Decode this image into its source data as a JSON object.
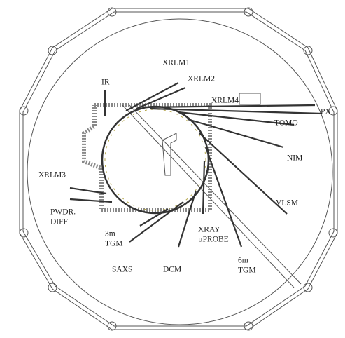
{
  "labels": [
    {
      "lines": [
        "IR"
      ]
    },
    {
      "lines": [
        "XRLM1"
      ]
    },
    {
      "lines": [
        "XRLM2"
      ]
    },
    {
      "lines": [
        "XRLM4"
      ]
    },
    {
      "lines": [
        "PX"
      ]
    },
    {
      "lines": [
        "TOMO"
      ]
    },
    {
      "lines": [
        "NIM"
      ]
    },
    {
      "lines": [
        "VLSM"
      ]
    },
    {
      "lines": [
        "XRLM3"
      ]
    },
    {
      "lines": [
        "PWDR.",
        "DIFF"
      ]
    },
    {
      "lines": [
        "3m",
        "TGM"
      ]
    },
    {
      "lines": [
        "SAXS"
      ]
    },
    {
      "lines": [
        "DCM"
      ]
    },
    {
      "lines": [
        "XRAY",
        "µPROBE"
      ]
    },
    {
      "lines": [
        "6m",
        "TGM"
      ]
    }
  ]
}
